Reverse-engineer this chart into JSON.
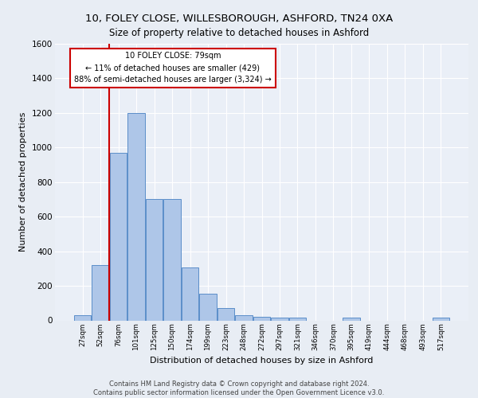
{
  "title1": "10, FOLEY CLOSE, WILLESBOROUGH, ASHFORD, TN24 0XA",
  "title2": "Size of property relative to detached houses in Ashford",
  "xlabel": "Distribution of detached houses by size in Ashford",
  "ylabel": "Number of detached properties",
  "footnote": "Contains HM Land Registry data © Crown copyright and database right 2024.\nContains public sector information licensed under the Open Government Licence v3.0.",
  "categories": [
    "27sqm",
    "52sqm",
    "76sqm",
    "101sqm",
    "125sqm",
    "150sqm",
    "174sqm",
    "199sqm",
    "223sqm",
    "248sqm",
    "272sqm",
    "297sqm",
    "321sqm",
    "346sqm",
    "370sqm",
    "395sqm",
    "419sqm",
    "444sqm",
    "468sqm",
    "493sqm",
    "517sqm"
  ],
  "values": [
    30,
    320,
    970,
    1200,
    700,
    700,
    305,
    155,
    70,
    30,
    20,
    15,
    15,
    0,
    0,
    15,
    0,
    0,
    0,
    0,
    15
  ],
  "bar_color": "#aec6e8",
  "bar_edge_color": "#5b8ec9",
  "annotation_text": "10 FOLEY CLOSE: 79sqm\n← 11% of detached houses are smaller (429)\n88% of semi-detached houses are larger (3,324) →",
  "vline_x_index": 2.0,
  "box_color": "#cc0000",
  "ylim": [
    0,
    1600
  ],
  "yticks": [
    0,
    200,
    400,
    600,
    800,
    1000,
    1200,
    1400,
    1600
  ],
  "bg_color": "#e8edf4",
  "plot_bg_color": "#eaeff7",
  "title1_fontsize": 9.5,
  "title2_fontsize": 8.5,
  "ylabel_fontsize": 8,
  "xlabel_fontsize": 8,
  "footnote_fontsize": 6.0
}
